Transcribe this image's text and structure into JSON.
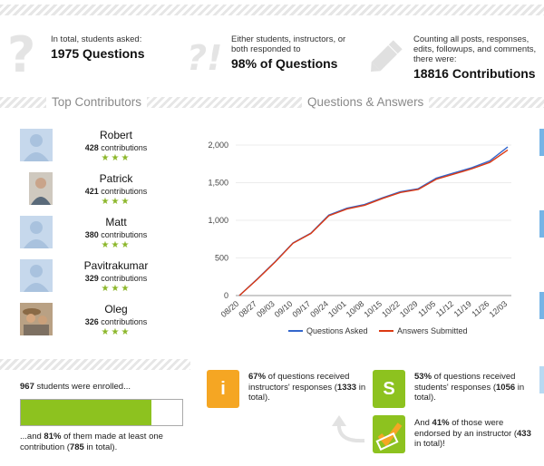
{
  "stats": [
    {
      "label": "In total, students asked:",
      "value": "1975 Questions",
      "icon": "question-mark-icon"
    },
    {
      "label": "Either students, instructors, or both responded to",
      "value": "98% of Questions",
      "icon": "exclamation-question-icon"
    },
    {
      "label": "Counting all posts, responses, edits, followups, and comments, there were:",
      "value": "18816 Contributions",
      "icon": "pencil-icon"
    }
  ],
  "sections": {
    "contributors_title": "Top Contributors",
    "qa_title": "Questions & Answers"
  },
  "contributors": [
    {
      "name": "Robert",
      "count": "428",
      "suffix": "contributions",
      "stars": "★★★"
    },
    {
      "name": "Patrick",
      "count": "421",
      "suffix": "contributions",
      "stars": "★★★"
    },
    {
      "name": "Matt",
      "count": "380",
      "suffix": "contributions",
      "stars": "★★★"
    },
    {
      "name": "Pavitrakumar",
      "count": "329",
      "suffix": "contributions",
      "stars": "★★★"
    },
    {
      "name": "Oleg",
      "count": "326",
      "suffix": "contributions",
      "stars": "★★★"
    }
  ],
  "enrollment": {
    "enrolled_count": "967",
    "enrolled_text": " students were enrolled...",
    "line2_prefix": "...and ",
    "percent": "81%",
    "line2_mid": " of them made at least one contribution (",
    "contrib_count": "785",
    "line2_suffix": " in total).",
    "fill_fraction": 0.81
  },
  "responses": {
    "instructor": {
      "tile": "i",
      "percent": "67%",
      "text": " of questions received instructors' responses",
      "count": "1333",
      "suffix": " in total).",
      "color": "#f5a623"
    },
    "student": {
      "tile": "S",
      "percent": "53%",
      "text": " of questions received students' responses",
      "count": "1056",
      "suffix": " in total).",
      "color": "#8dc21f"
    },
    "endorsed": {
      "prefix": "And ",
      "percent": "41%",
      "text": " of those were endorsed by an instructor",
      "count": "433",
      "suffix": " in total)!",
      "color": "#8dc21f"
    }
  },
  "chart_data": {
    "type": "line",
    "x": [
      "08/20",
      "08/27",
      "09/03",
      "09/10",
      "09/17",
      "09/24",
      "10/01",
      "10/08",
      "10/15",
      "10/22",
      "10/29",
      "11/05",
      "11/12",
      "11/19",
      "11/26",
      "12/03"
    ],
    "ylim": [
      0,
      2000
    ],
    "yticks": [
      "0",
      "500",
      "1,000",
      "1,500",
      "2,000"
    ],
    "series": [
      {
        "name": "Questions Asked",
        "color": "#3366cc",
        "values": [
          0,
          220,
          450,
          700,
          830,
          1070,
          1160,
          1210,
          1300,
          1380,
          1420,
          1560,
          1630,
          1700,
          1790,
          1975
        ]
      },
      {
        "name": "Answers Submitted",
        "color": "#dc3912",
        "values": [
          0,
          215,
          445,
          695,
          825,
          1060,
          1150,
          1200,
          1290,
          1370,
          1410,
          1545,
          1615,
          1685,
          1770,
          1935
        ]
      }
    ],
    "legend_position": "bottom"
  }
}
